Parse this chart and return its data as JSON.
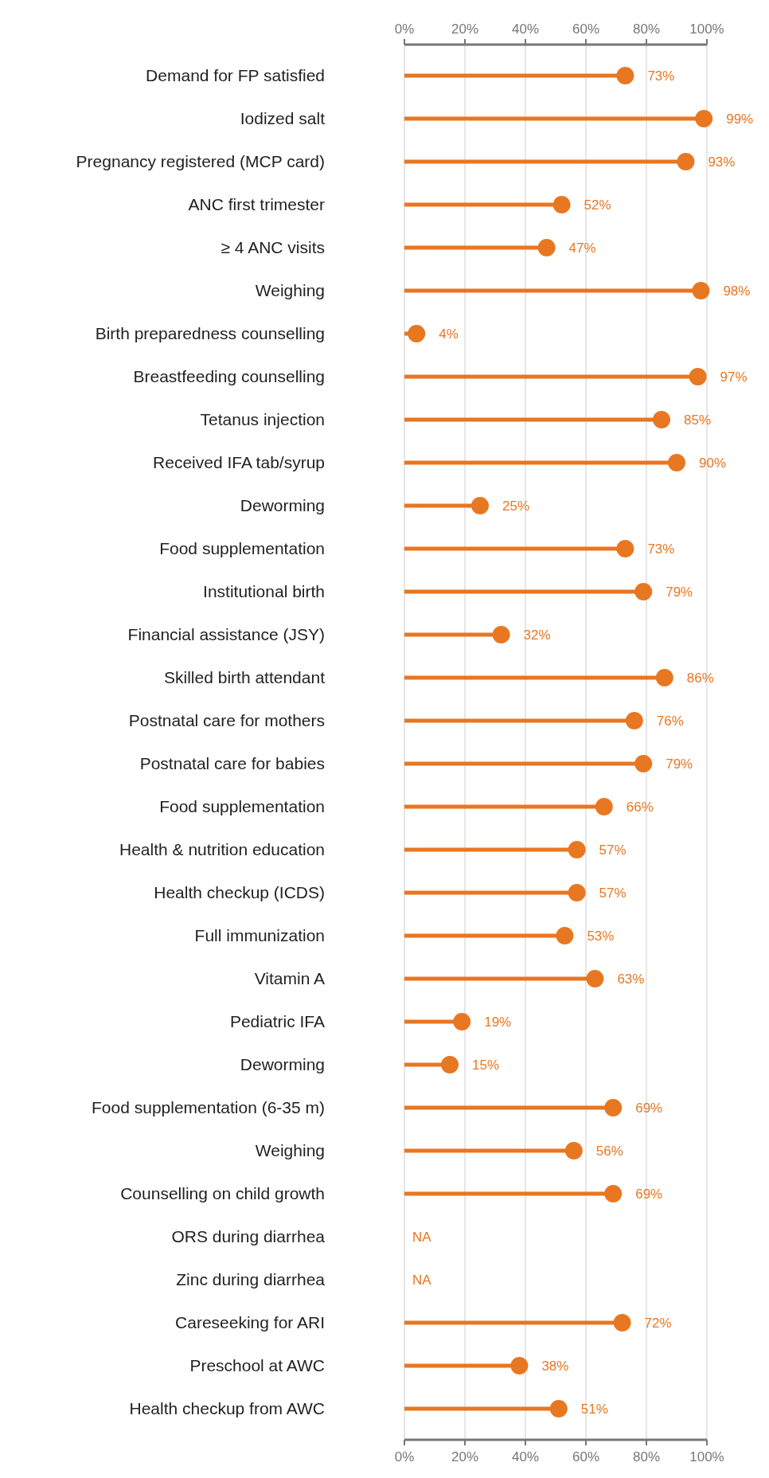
{
  "chart_data": {
    "type": "lollipop",
    "orientation": "horizontal",
    "categories": [
      "Demand for FP satisfied",
      "Iodized salt",
      "Pregnancy registered (MCP card)",
      "ANC first trimester",
      "≥ 4 ANC visits",
      "Weighing",
      "Birth preparedness counselling",
      "Breastfeeding counselling",
      "Tetanus injection",
      "Received IFA tab/syrup",
      "Deworming",
      "Food supplementation",
      "Institutional birth",
      "Financial assistance (JSY)",
      "Skilled birth attendant",
      "Postnatal care for mothers",
      "Postnatal care for babies",
      "Food supplementation",
      "Health & nutrition education",
      "Health checkup (ICDS)",
      "Full immunization",
      "Vitamin A",
      "Pediatric IFA",
      "Deworming",
      "Food supplementation (6-35 m)",
      "Weighing",
      "Counselling on child growth",
      "ORS during diarrhea",
      "Zinc during diarrhea",
      "Careseeking for ARI",
      "Preschool at AWC",
      "Health checkup from AWC"
    ],
    "values": [
      73,
      99,
      93,
      52,
      47,
      98,
      4,
      97,
      85,
      90,
      25,
      73,
      79,
      32,
      86,
      76,
      79,
      66,
      57,
      57,
      53,
      63,
      19,
      15,
      69,
      56,
      69,
      null,
      null,
      72,
      38,
      51
    ],
    "value_labels": [
      "73%",
      "99%",
      "93%",
      "52%",
      "47%",
      "98%",
      "4%",
      "97%",
      "85%",
      "90%",
      "25%",
      "73%",
      "79%",
      "32%",
      "86%",
      "76%",
      "79%",
      "66%",
      "57%",
      "57%",
      "53%",
      "63%",
      "19%",
      "15%",
      "69%",
      "56%",
      "69%",
      "NA",
      "NA",
      "72%",
      "38%",
      "51%"
    ],
    "color": "#e87722",
    "marker": "circle",
    "grid": "x",
    "xlim": [
      0,
      100
    ],
    "xticks": [
      {
        "value": 0,
        "label": "0%"
      },
      {
        "value": 20,
        "label": "20%"
      },
      {
        "value": 40,
        "label": "40%"
      },
      {
        "value": 60,
        "label": "60%"
      },
      {
        "value": 80,
        "label": "80%"
      },
      {
        "value": 100,
        "label": "100%"
      }
    ],
    "x2lim": [
      0,
      100
    ],
    "x2ticks": [
      {
        "value": 0,
        "label": "0%"
      },
      {
        "value": 20,
        "label": "20%"
      },
      {
        "value": 40,
        "label": "40%"
      },
      {
        "value": 60,
        "label": "60%"
      },
      {
        "value": 80,
        "label": "80%"
      },
      {
        "value": 100,
        "label": "100%"
      }
    ]
  }
}
